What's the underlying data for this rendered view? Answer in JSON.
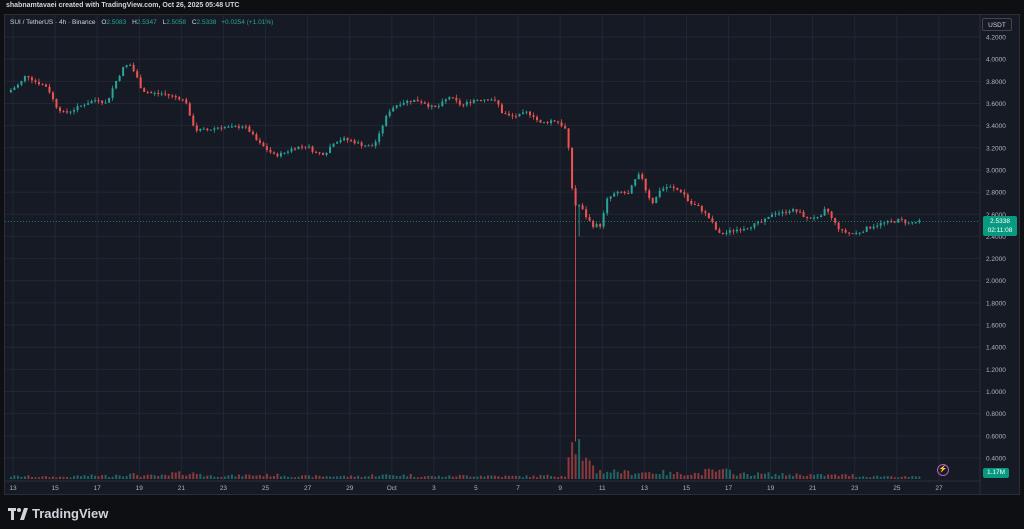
{
  "header": {
    "author_line": "shabnamtavaei created with TradingView.com, Oct 26, 2025 05:48 UTC"
  },
  "legend": {
    "symbol": "SUI / TetherUS · 4h · Binance",
    "o_key": "O",
    "o": "2.5083",
    "h_key": "H",
    "h": "2.5347",
    "l_key": "L",
    "l": "2.5058",
    "c_key": "C",
    "c": "2.5338",
    "change": "+0.0254 (+1.01%)"
  },
  "toolbar": {
    "currency": "USDT"
  },
  "price_tag": {
    "price": "2.5338",
    "countdown": "02:11:08"
  },
  "volume_badge": "1.17M",
  "brand": {
    "name": "TradingView"
  },
  "colors": {
    "up": "#26a69a",
    "down": "#ef5350",
    "background": "#161a25",
    "grid": "#232735",
    "text": "#b2b5be"
  },
  "chart_data": {
    "type": "candlestick",
    "price_axis": {
      "ylim": [
        0.0,
        4.3
      ],
      "ticks": [
        "4.2000",
        "4.0000",
        "3.8000",
        "3.6000",
        "3.4000",
        "3.2000",
        "3.0000",
        "2.8000",
        "2.6000",
        "2.4000",
        "2.2000",
        "2.0000",
        "1.8000",
        "1.6000",
        "1.4000",
        "1.2000",
        "1.0000",
        "0.8000",
        "0.6000",
        "0.4000"
      ]
    },
    "time_axis": {
      "labels": [
        "13",
        "15",
        "17",
        "19",
        "21",
        "23",
        "25",
        "27",
        "29",
        "Oct",
        "3",
        "5",
        "7",
        "9",
        "11",
        "13",
        "15",
        "17",
        "19",
        "21",
        "23",
        "25",
        "27"
      ]
    },
    "current_price": 2.5338,
    "price_path": [
      [
        12.9,
        3.7
      ],
      [
        13.5,
        3.78
      ],
      [
        13.8,
        3.86
      ],
      [
        14.2,
        3.8
      ],
      [
        14.8,
        3.75
      ],
      [
        15.2,
        3.58
      ],
      [
        15.6,
        3.51
      ],
      [
        16.1,
        3.55
      ],
      [
        16.6,
        3.6
      ],
      [
        17.2,
        3.64
      ],
      [
        17.6,
        3.6
      ],
      [
        18.0,
        3.78
      ],
      [
        18.4,
        3.92
      ],
      [
        18.7,
        3.96
      ],
      [
        19.0,
        3.86
      ],
      [
        19.3,
        3.72
      ],
      [
        19.8,
        3.69
      ],
      [
        20.3,
        3.69
      ],
      [
        20.8,
        3.66
      ],
      [
        21.1,
        3.65
      ],
      [
        21.4,
        3.61
      ],
      [
        21.6,
        3.45
      ],
      [
        21.9,
        3.36
      ],
      [
        22.4,
        3.36
      ],
      [
        23.0,
        3.39
      ],
      [
        23.6,
        3.38
      ],
      [
        24.1,
        3.4
      ],
      [
        24.4,
        3.35
      ],
      [
        24.8,
        3.25
      ],
      [
        25.2,
        3.19
      ],
      [
        25.6,
        3.13
      ],
      [
        26.0,
        3.15
      ],
      [
        26.5,
        3.2
      ],
      [
        27.1,
        3.22
      ],
      [
        27.6,
        3.15
      ],
      [
        28.0,
        3.15
      ],
      [
        28.4,
        3.25
      ],
      [
        28.8,
        3.28
      ],
      [
        29.3,
        3.26
      ],
      [
        29.7,
        3.23
      ],
      [
        30.2,
        3.21
      ],
      [
        30.5,
        3.28
      ],
      [
        30.8,
        3.44
      ],
      [
        31.1,
        3.55
      ],
      [
        31.5,
        3.6
      ],
      [
        31.9,
        3.62
      ],
      [
        32.3,
        3.63
      ],
      [
        32.7,
        3.61
      ],
      [
        33.0,
        3.57
      ],
      [
        33.3,
        3.56
      ],
      [
        33.6,
        3.61
      ],
      [
        33.9,
        3.66
      ],
      [
        34.2,
        3.62
      ],
      [
        34.5,
        3.58
      ],
      [
        35.0,
        3.63
      ],
      [
        35.5,
        3.64
      ],
      [
        35.9,
        3.64
      ],
      [
        36.2,
        3.6
      ],
      [
        36.4,
        3.52
      ],
      [
        36.8,
        3.48
      ],
      [
        37.2,
        3.49
      ],
      [
        37.6,
        3.52
      ],
      [
        37.9,
        3.49
      ],
      [
        38.2,
        3.42
      ],
      [
        38.5,
        3.43
      ],
      [
        38.8,
        3.45
      ],
      [
        39.1,
        3.43
      ],
      [
        39.4,
        3.37
      ],
      [
        39.6,
        3.15
      ],
      [
        39.8,
        2.68
      ],
      [
        40.1,
        2.68
      ],
      [
        40.4,
        2.58
      ],
      [
        40.7,
        2.5
      ],
      [
        41.1,
        2.5
      ],
      [
        41.4,
        2.73
      ],
      [
        41.7,
        2.78
      ],
      [
        42.1,
        2.8
      ],
      [
        42.4,
        2.78
      ],
      [
        42.7,
        2.9
      ],
      [
        43.0,
        2.97
      ],
      [
        43.3,
        2.78
      ],
      [
        43.6,
        2.7
      ],
      [
        43.9,
        2.82
      ],
      [
        44.3,
        2.85
      ],
      [
        44.7,
        2.82
      ],
      [
        45.0,
        2.8
      ],
      [
        45.3,
        2.7
      ],
      [
        45.7,
        2.67
      ],
      [
        46.0,
        2.62
      ],
      [
        46.3,
        2.55
      ],
      [
        46.7,
        2.42
      ],
      [
        47.0,
        2.43
      ],
      [
        47.5,
        2.46
      ],
      [
        48.0,
        2.48
      ],
      [
        48.6,
        2.52
      ],
      [
        49.0,
        2.55
      ],
      [
        49.3,
        2.62
      ],
      [
        49.7,
        2.61
      ],
      [
        50.1,
        2.64
      ],
      [
        50.5,
        2.62
      ],
      [
        50.9,
        2.56
      ],
      [
        51.2,
        2.58
      ],
      [
        51.5,
        2.55
      ],
      [
        51.8,
        2.66
      ],
      [
        52.1,
        2.55
      ],
      [
        52.5,
        2.45
      ],
      [
        52.9,
        2.43
      ],
      [
        53.3,
        2.43
      ],
      [
        53.7,
        2.47
      ],
      [
        54.1,
        2.5
      ],
      [
        54.5,
        2.52
      ],
      [
        54.9,
        2.53
      ],
      [
        55.3,
        2.55
      ],
      [
        55.7,
        2.52
      ],
      [
        56.1,
        2.53
      ]
    ],
    "volume_profile": [
      [
        12.9,
        5
      ],
      [
        15.0,
        4
      ],
      [
        17.0,
        6
      ],
      [
        18.6,
        8
      ],
      [
        19.5,
        6
      ],
      [
        21.6,
        10
      ],
      [
        22.5,
        6
      ],
      [
        25.0,
        7
      ],
      [
        27.0,
        5
      ],
      [
        29.0,
        5
      ],
      [
        31.0,
        7
      ],
      [
        33.0,
        5
      ],
      [
        35.0,
        6
      ],
      [
        37.0,
        5
      ],
      [
        39.0,
        6
      ],
      [
        39.7,
        60
      ],
      [
        40.2,
        28
      ],
      [
        41.0,
        14
      ],
      [
        43.0,
        12
      ],
      [
        45.0,
        10
      ],
      [
        46.7,
        14
      ],
      [
        48.0,
        9
      ],
      [
        50.0,
        8
      ],
      [
        52.0,
        7
      ],
      [
        54.0,
        5
      ],
      [
        56.1,
        4
      ]
    ]
  }
}
